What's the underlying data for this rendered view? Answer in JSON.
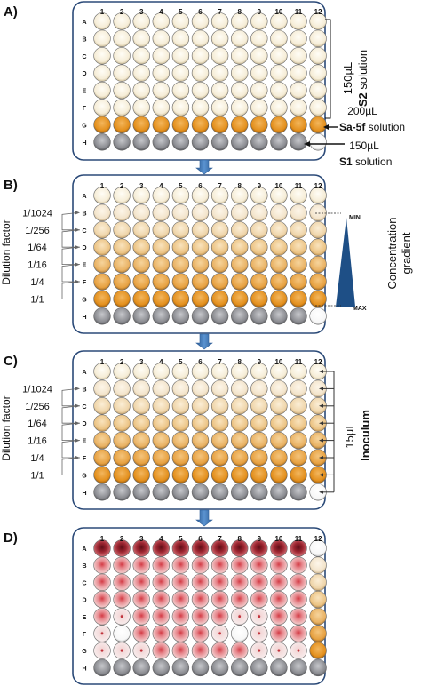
{
  "column_numbers": [
    "1",
    "2",
    "3",
    "4",
    "5",
    "6",
    "7",
    "8",
    "9",
    "10",
    "11",
    "12"
  ],
  "row_letters": [
    "A",
    "B",
    "C",
    "D",
    "E",
    "F",
    "G",
    "H"
  ],
  "palette": {
    "frame": "#2b4a78",
    "arrow_blue": "#3f78b8",
    "triangle": "#1e4f86",
    "orange": "#e8961e",
    "s2_cream": "#f6edd7",
    "s1_gray": "#8a8b90",
    "empty_white": "#ffffff",
    "red": "#c0343c",
    "dark_red": "#8e1e2a"
  },
  "panels": [
    {
      "label": "A)",
      "wells": [
        "CCCCCCCCCCCC",
        "CCCCCCCCCCCC",
        "CCCCCCCCCCCC",
        "CCCCCCCCCCCC",
        "CCCCCCCCCCCC",
        "CCCCCCCCCCCC",
        "OOOOOOOOOOOO",
        "SSSSSSSSSSSW"
      ],
      "annotations": {
        "s2_volume": "150µL",
        "s2_name": "S2",
        "s2_suffix": "solution",
        "sa_volume": "200µL",
        "sa_name": "Sa-5f",
        "sa_suffix": "solution",
        "s1_volume": "150µL",
        "s1_name": "S1",
        "s1_suffix": "solution"
      }
    },
    {
      "label": "B)",
      "wells": [
        "CCCCCCCCCCCC",
        "111111111111",
        "222222222222",
        "333333333333",
        "444444444444",
        "555555555555",
        "666666666666",
        "SSSSSSSSSSSW"
      ],
      "side_label": "Dilution factor",
      "dilutions": [
        "1/1024",
        "1/256",
        "1/64",
        "1/16",
        "1/4",
        "1/1"
      ],
      "gradient_label_line1": "Concentration",
      "gradient_label_line2": "gradient",
      "min_label": "MIN",
      "max_label": "MAX"
    },
    {
      "label": "C)",
      "wells": [
        "CCCCCCCCCCCC",
        "111111111111",
        "222222222222",
        "333333333333",
        "444444444444",
        "555555555555",
        "666666666666",
        "SSSSSSSSSSSW"
      ],
      "side_label": "Dilution factor",
      "dilutions": [
        "1/1024",
        "1/256",
        "1/64",
        "1/16",
        "1/4",
        "1/1"
      ],
      "inoculum_volume": "15µL",
      "inoculum_label": "Inoculum"
    },
    {
      "label": "D)",
      "wells": [
        "DDDDDDDDDDDW",
        "RRRRRRRRRRR1",
        "RRRRRRRRRRR2",
        "RRRRRRRRRRR3",
        "RPRRRRRPPRR4",
        "PWRRRRPWPRR5",
        "PPPRRRRRPPP6",
        "SSSSSSSSSSSS"
      ]
    }
  ]
}
